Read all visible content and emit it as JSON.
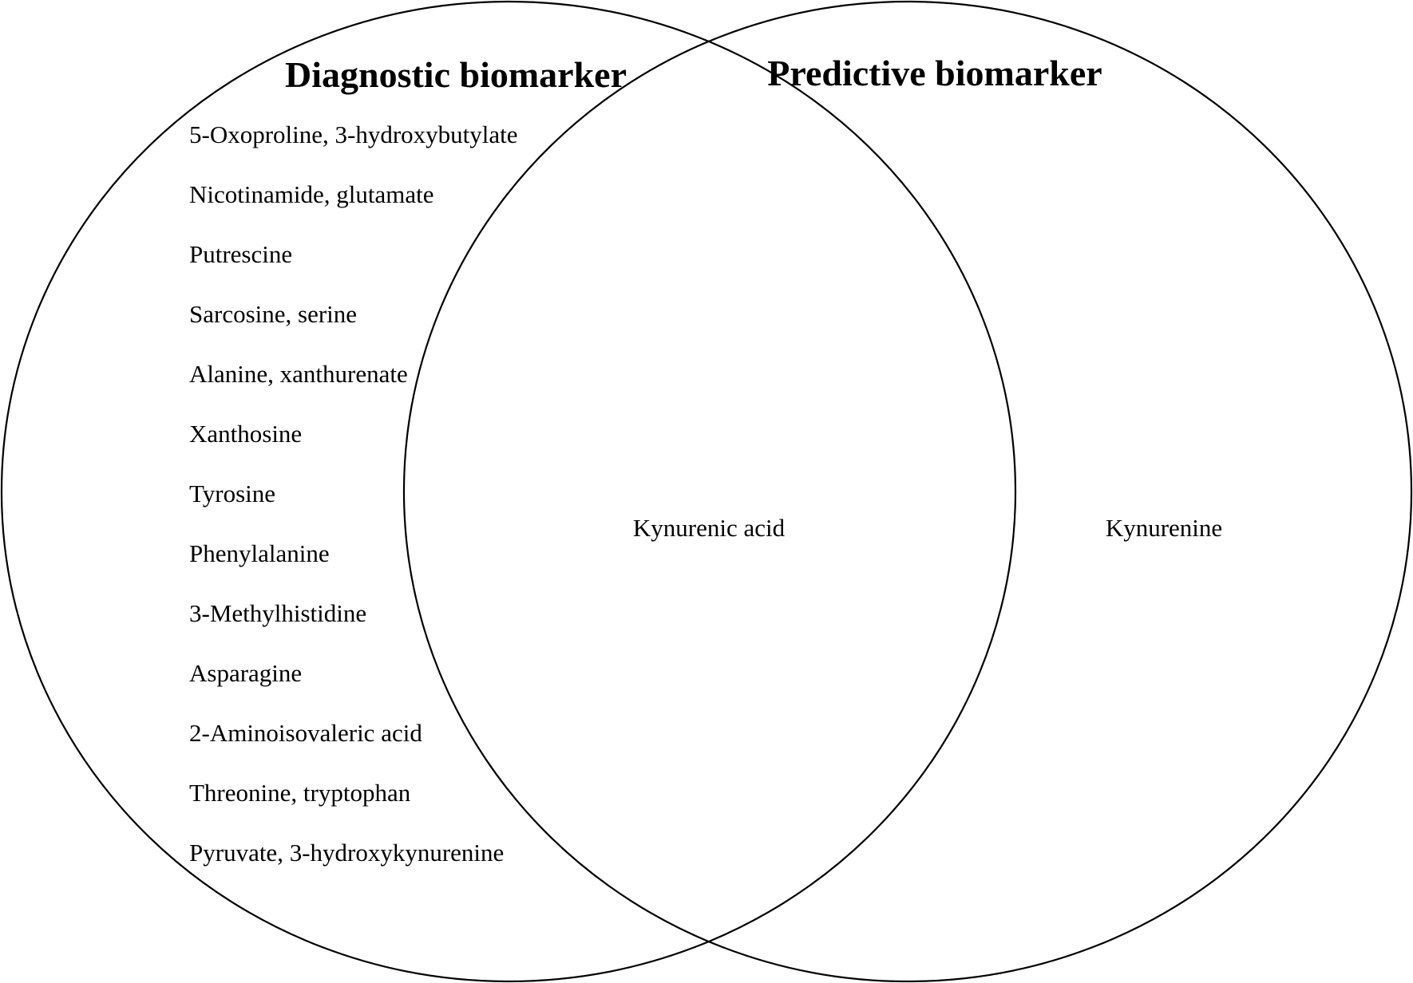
{
  "diagram": {
    "type": "venn",
    "sets": [
      {
        "title": "Diagnostic biomarker",
        "items": [
          "5-Oxoproline, 3-hydroxybutylate",
          "Nicotinamide, glutamate",
          "Putrescine",
          "Sarcosine, serine",
          "Alanine, xanthurenate",
          "Xanthosine",
          "Tyrosine",
          "Phenylalanine",
          "3-Methylhistidine",
          "Asparagine",
          "2-Aminoisovaleric acid",
          "Threonine, tryptophan",
          "Pyruvate, 3-hydroxykynurenine"
        ]
      },
      {
        "title": "Predictive biomarker",
        "items": [
          "Kynurenine"
        ]
      }
    ],
    "intersection": {
      "items": [
        "Kynurenic acid"
      ]
    }
  }
}
